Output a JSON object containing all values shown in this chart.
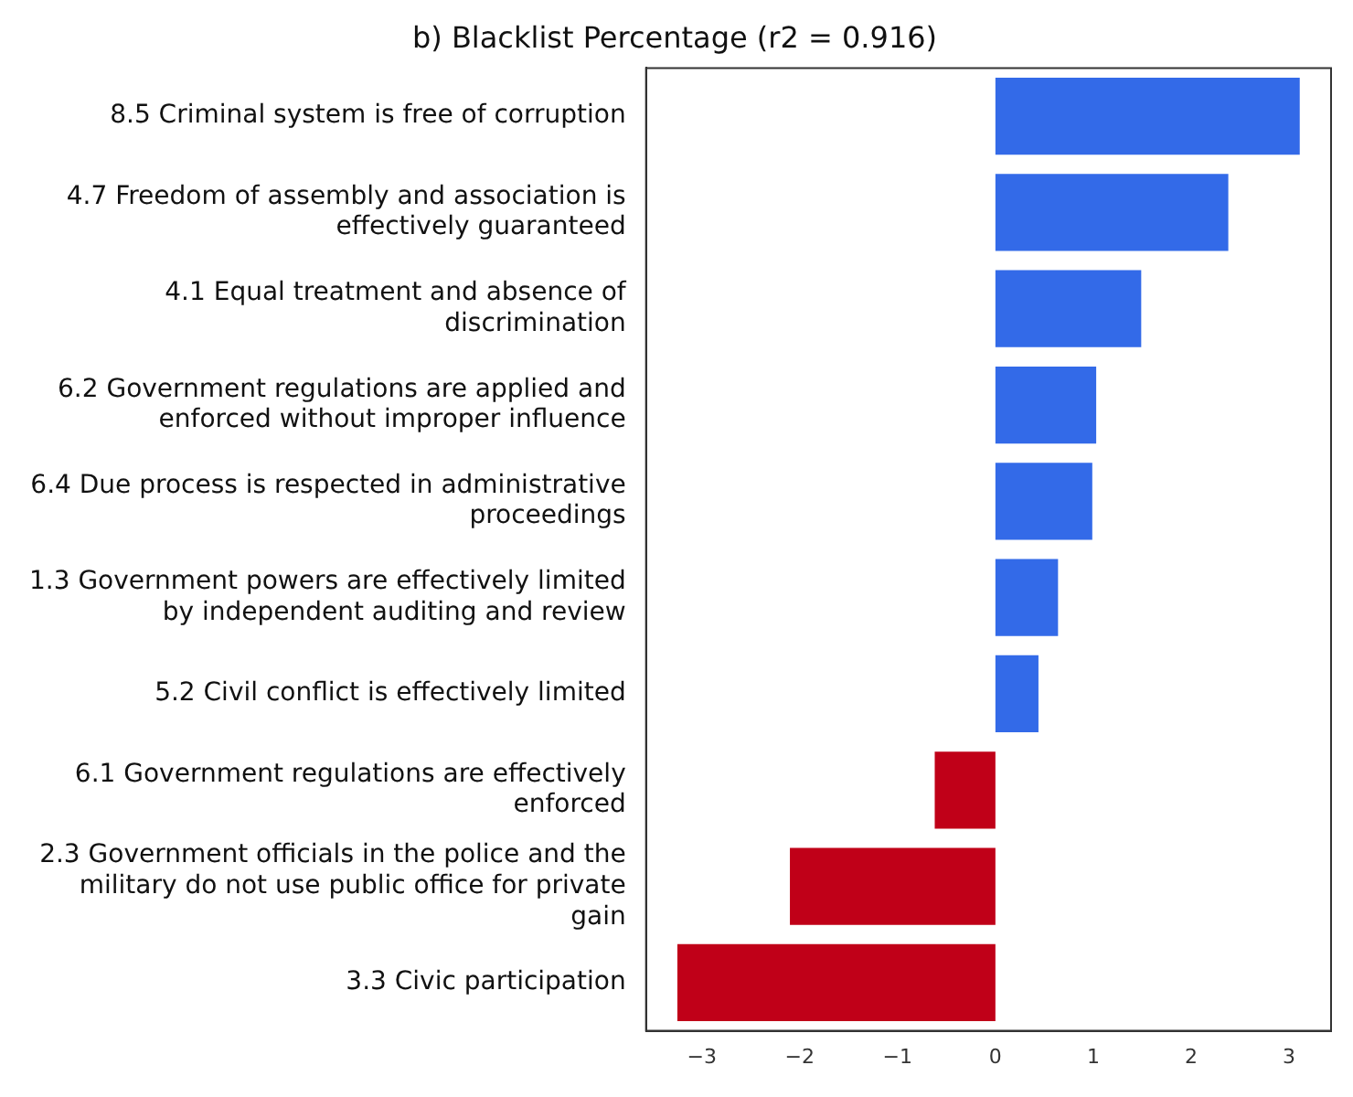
{
  "chart_data": {
    "type": "bar",
    "orientation": "horizontal",
    "title": "b) Blacklist Percentage (r2 = 0.916)",
    "categories": [
      "8.5 Criminal system is free of corruption",
      "4.7 Freedom of assembly and association is effectively guaranteed",
      "4.1 Equal treatment and absence of discrimination",
      "6.2 Government regulations are applied and enforced without improper influence",
      "6.4 Due process is respected in administrative proceedings",
      "1.3 Government powers are effectively limited by independent auditing and review",
      "5.2 Civil conflict is effectively limited",
      "6.1 Government regulations are effectively enforced",
      "2.3 Government officials in the police and the military do not use public office for private gain",
      "3.3 Civic participation"
    ],
    "values": [
      3.11,
      2.38,
      1.49,
      1.03,
      0.99,
      0.64,
      0.44,
      -0.62,
      -2.1,
      -3.25
    ],
    "colors": [
      "#336ae8",
      "#336ae8",
      "#336ae8",
      "#336ae8",
      "#336ae8",
      "#336ae8",
      "#336ae8",
      "#c00018",
      "#c00018",
      "#c00018"
    ],
    "xlim": [
      -3.57,
      3.43
    ],
    "xticks": [
      {
        "value": -3,
        "label": "−3"
      },
      {
        "value": -2,
        "label": "−2"
      },
      {
        "value": -1,
        "label": "−1"
      },
      0,
      1,
      2,
      3
    ],
    "grid": false,
    "legend": false
  }
}
